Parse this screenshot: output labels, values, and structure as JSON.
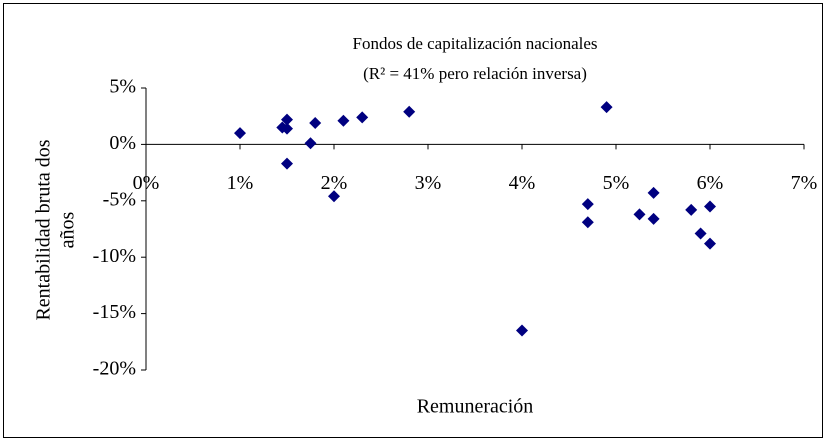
{
  "chart_data": {
    "type": "scatter",
    "title": "Fondos de capitalización nacionales",
    "subtitle": "(R² = 41% pero relación inversa)",
    "x_label": "Remuneración",
    "y_label_lines": [
      "Rentabilidad bruta dos",
      "años"
    ],
    "x": [
      1.0,
      1.45,
      1.5,
      1.5,
      1.5,
      1.75,
      1.8,
      2.0,
      2.1,
      2.3,
      2.8,
      4.9,
      4.0,
      4.7,
      4.7,
      5.25,
      5.4,
      5.4,
      5.8,
      5.9,
      6.0,
      6.0
    ],
    "series": [
      {
        "color": "#000080",
        "values": [
          1.0,
          1.5,
          2.2,
          1.4,
          -1.7,
          0.1,
          1.9,
          -4.6,
          2.1,
          2.4,
          2.9,
          3.3,
          -16.5,
          -5.3,
          -6.9,
          -6.2,
          -4.3,
          -6.6,
          -5.8,
          -7.9,
          -5.5,
          -8.8
        ]
      }
    ],
    "xlim": [
      0,
      7
    ],
    "xticks": [
      {
        "value": 0,
        "label": "0%"
      },
      {
        "value": 1,
        "label": "1%"
      },
      {
        "value": 2,
        "label": "2%"
      },
      {
        "value": 3,
        "label": "3%"
      },
      {
        "value": 4,
        "label": "4%"
      },
      {
        "value": 5,
        "label": "5%"
      },
      {
        "value": 6,
        "label": "6%"
      },
      {
        "value": 7,
        "label": "7%"
      }
    ],
    "ylim": [
      -20,
      5
    ],
    "yticks": [
      {
        "value": 5,
        "label": "5%"
      },
      {
        "value": 0,
        "label": "0%"
      },
      {
        "value": -5,
        "label": "-5%"
      },
      {
        "value": -10,
        "label": "-10%"
      },
      {
        "value": -15,
        "label": "-15%"
      },
      {
        "value": -20,
        "label": "-20%"
      }
    ],
    "grid": false
  }
}
